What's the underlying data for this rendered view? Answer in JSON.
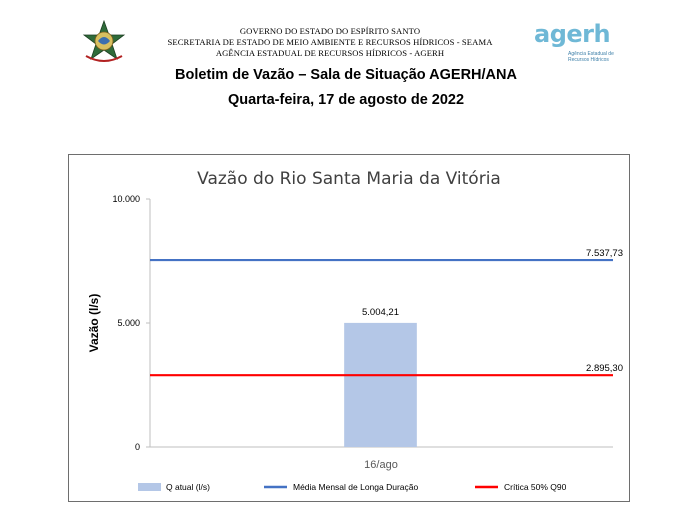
{
  "header": {
    "lines": [
      "GOVERNO DO ESTADO DO ESPÍRITO SANTO",
      "SECRETARIA DE ESTADO DE MEIO AMBIENTE E RECURSOS HÍDRICOS - SEAMA",
      "AGÊNCIA ESTADUAL DE RECURSOS HÍDRICOS - AGERH"
    ],
    "logo_text": "agerh",
    "logo_subtitle_1": "Agência Estadual de",
    "logo_subtitle_2": "Recursos Hídricos",
    "title": "Boletim de Vazão – Sala de Situação AGERH/ANA",
    "date": "Quarta-feira, 17 de agosto de 2022"
  },
  "chart_data": {
    "type": "bar",
    "title": "Vazão do Rio Santa Maria da Vitória",
    "ylabel": "Vazão (l/s)",
    "xlabel": "",
    "ylim": [
      0,
      10000
    ],
    "yticks": [
      0,
      5000,
      10000
    ],
    "ytick_labels": [
      "0",
      "5.000",
      "10.000"
    ],
    "categories": [
      "16/ago"
    ],
    "grid": false,
    "legend_position": "bottom",
    "series": [
      {
        "name": "Q atual (l/s)",
        "kind": "bar",
        "values": [
          5004.21
        ],
        "label": "5.004,21",
        "color": "#b4c7e7"
      },
      {
        "name": "Média Mensal de Longa Duração",
        "kind": "hline",
        "value": 7537.73,
        "label": "7.537,73",
        "color": "#4472c4"
      },
      {
        "name": "Crítica 50% Q90",
        "kind": "hline",
        "value": 2895.3,
        "label": "2.895,30",
        "color": "#ff0000"
      }
    ]
  }
}
